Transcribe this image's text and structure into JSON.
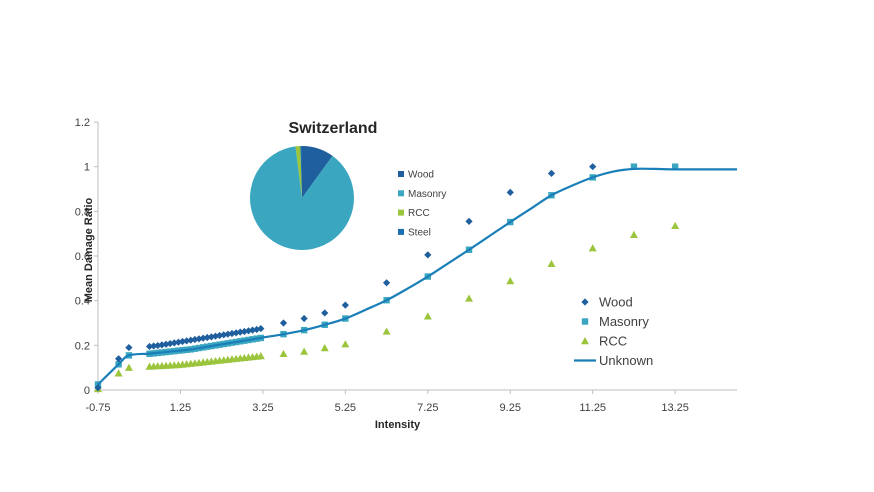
{
  "chart_data": [
    {
      "type": "scatter",
      "title": "",
      "xlabel": "Intensity",
      "ylabel": "Mean Damage Ratio",
      "xlim": [
        -0.75,
        14.75
      ],
      "ylim": [
        0,
        1.2
      ],
      "xticks": [
        -0.75,
        1.25,
        3.25,
        5.25,
        7.25,
        9.25,
        11.25,
        13.25
      ],
      "xtick_labels": [
        "-0.75",
        "1.25",
        "3.25",
        "5.25",
        "7.25",
        "9.25",
        "11.25",
        "13.25"
      ],
      "yticks": [
        0,
        0.2,
        0.4,
        0.6,
        0.8,
        1,
        1.2
      ],
      "ytick_labels": [
        "0",
        "0.2",
        "0.4",
        "0.6",
        "0.8",
        "1",
        "1.2"
      ],
      "legend_position": "right",
      "colors": {
        "wood": "#1f5f9e",
        "masonry": "#3aa6c0",
        "rcc": "#9bc53d",
        "unknown": "#1a7fb8"
      },
      "series": [
        {
          "name": "Wood",
          "marker": "diamond",
          "x": [
            -0.75,
            -0.25,
            0.0,
            0.5,
            0.6,
            0.7,
            0.8,
            0.9,
            1.0,
            1.1,
            1.2,
            1.3,
            1.4,
            1.5,
            1.6,
            1.7,
            1.8,
            1.9,
            2.0,
            2.1,
            2.2,
            2.3,
            2.4,
            2.5,
            2.6,
            2.7,
            2.8,
            2.9,
            3.0,
            3.1,
            3.2,
            3.75,
            4.25,
            4.75,
            5.25,
            6.25,
            7.25,
            8.25,
            9.25,
            10.25,
            11.25
          ],
          "y": [
            0.01,
            0.14,
            0.19,
            0.195,
            0.197,
            0.199,
            0.202,
            0.205,
            0.208,
            0.211,
            0.214,
            0.217,
            0.22,
            0.223,
            0.226,
            0.229,
            0.232,
            0.235,
            0.238,
            0.241,
            0.244,
            0.247,
            0.25,
            0.253,
            0.256,
            0.259,
            0.262,
            0.265,
            0.268,
            0.271,
            0.275,
            0.3,
            0.32,
            0.345,
            0.38,
            0.48,
            0.605,
            0.755,
            0.885,
            0.97,
            1.0
          ]
        },
        {
          "name": "Masonry",
          "marker": "square",
          "x": [
            -0.75,
            -0.25,
            0.0,
            0.5,
            0.6,
            0.7,
            0.8,
            0.9,
            1.0,
            1.1,
            1.2,
            1.3,
            1.4,
            1.5,
            1.6,
            1.7,
            1.8,
            1.9,
            2.0,
            2.1,
            2.2,
            2.3,
            2.4,
            2.5,
            2.6,
            2.7,
            2.8,
            2.9,
            3.0,
            3.1,
            3.2,
            3.75,
            4.25,
            4.75,
            5.25,
            6.25,
            7.25,
            8.25,
            9.25,
            10.25,
            11.25,
            12.25,
            13.25
          ],
          "y": [
            0.025,
            0.115,
            0.155,
            0.162,
            0.164,
            0.166,
            0.168,
            0.17,
            0.172,
            0.174,
            0.176,
            0.178,
            0.18,
            0.182,
            0.185,
            0.188,
            0.191,
            0.194,
            0.197,
            0.2,
            0.203,
            0.206,
            0.209,
            0.212,
            0.215,
            0.218,
            0.221,
            0.224,
            0.227,
            0.23,
            0.233,
            0.25,
            0.268,
            0.292,
            0.32,
            0.402,
            0.508,
            0.628,
            0.752,
            0.872,
            0.952,
            1.0,
            1.0
          ]
        },
        {
          "name": "RCC",
          "marker": "triangle",
          "x": [
            -0.75,
            -0.25,
            0.0,
            0.5,
            0.6,
            0.7,
            0.8,
            0.9,
            1.0,
            1.1,
            1.2,
            1.3,
            1.4,
            1.5,
            1.6,
            1.7,
            1.8,
            1.9,
            2.0,
            2.1,
            2.2,
            2.3,
            2.4,
            2.5,
            2.6,
            2.7,
            2.8,
            2.9,
            3.0,
            3.1,
            3.2,
            3.75,
            4.25,
            4.75,
            5.25,
            6.25,
            7.25,
            8.25,
            9.25,
            10.25,
            11.25,
            12.25,
            13.25
          ],
          "y": [
            0.005,
            0.075,
            0.1,
            0.105,
            0.106,
            0.107,
            0.108,
            0.109,
            0.11,
            0.111,
            0.112,
            0.114,
            0.116,
            0.118,
            0.12,
            0.122,
            0.124,
            0.126,
            0.128,
            0.13,
            0.132,
            0.134,
            0.136,
            0.138,
            0.14,
            0.142,
            0.144,
            0.146,
            0.148,
            0.15,
            0.152,
            0.162,
            0.172,
            0.188,
            0.205,
            0.262,
            0.33,
            0.41,
            0.488,
            0.565,
            0.635,
            0.695,
            0.735
          ]
        },
        {
          "name": "Unknown",
          "marker": "line",
          "x": [
            -0.75,
            -0.25,
            0.0,
            0.5,
            1.0,
            1.5,
            2.0,
            2.5,
            3.0,
            3.25,
            3.75,
            4.25,
            4.75,
            5.25,
            5.75,
            6.25,
            6.75,
            7.25,
            7.75,
            8.25,
            8.75,
            9.25,
            9.75,
            10.25,
            10.75,
            11.25,
            11.75,
            12.25,
            12.75,
            13.25,
            14.0,
            14.75
          ],
          "y": [
            0.025,
            0.115,
            0.155,
            0.163,
            0.172,
            0.182,
            0.197,
            0.212,
            0.227,
            0.235,
            0.25,
            0.268,
            0.292,
            0.32,
            0.36,
            0.402,
            0.453,
            0.508,
            0.568,
            0.628,
            0.69,
            0.752,
            0.812,
            0.872,
            0.915,
            0.952,
            0.978,
            0.99,
            0.99,
            0.988,
            0.988,
            0.988
          ]
        }
      ]
    },
    {
      "type": "pie",
      "title": "Switzerland",
      "labels": [
        "Wood",
        "Masonry",
        "RCC",
        "Steel"
      ],
      "values": [
        10,
        88,
        1.5,
        0.5
      ],
      "colors": [
        "#1f5f9e",
        "#3aa6c0",
        "#9bc53d",
        "#1a6fb0"
      ],
      "legend_position": "right"
    }
  ]
}
